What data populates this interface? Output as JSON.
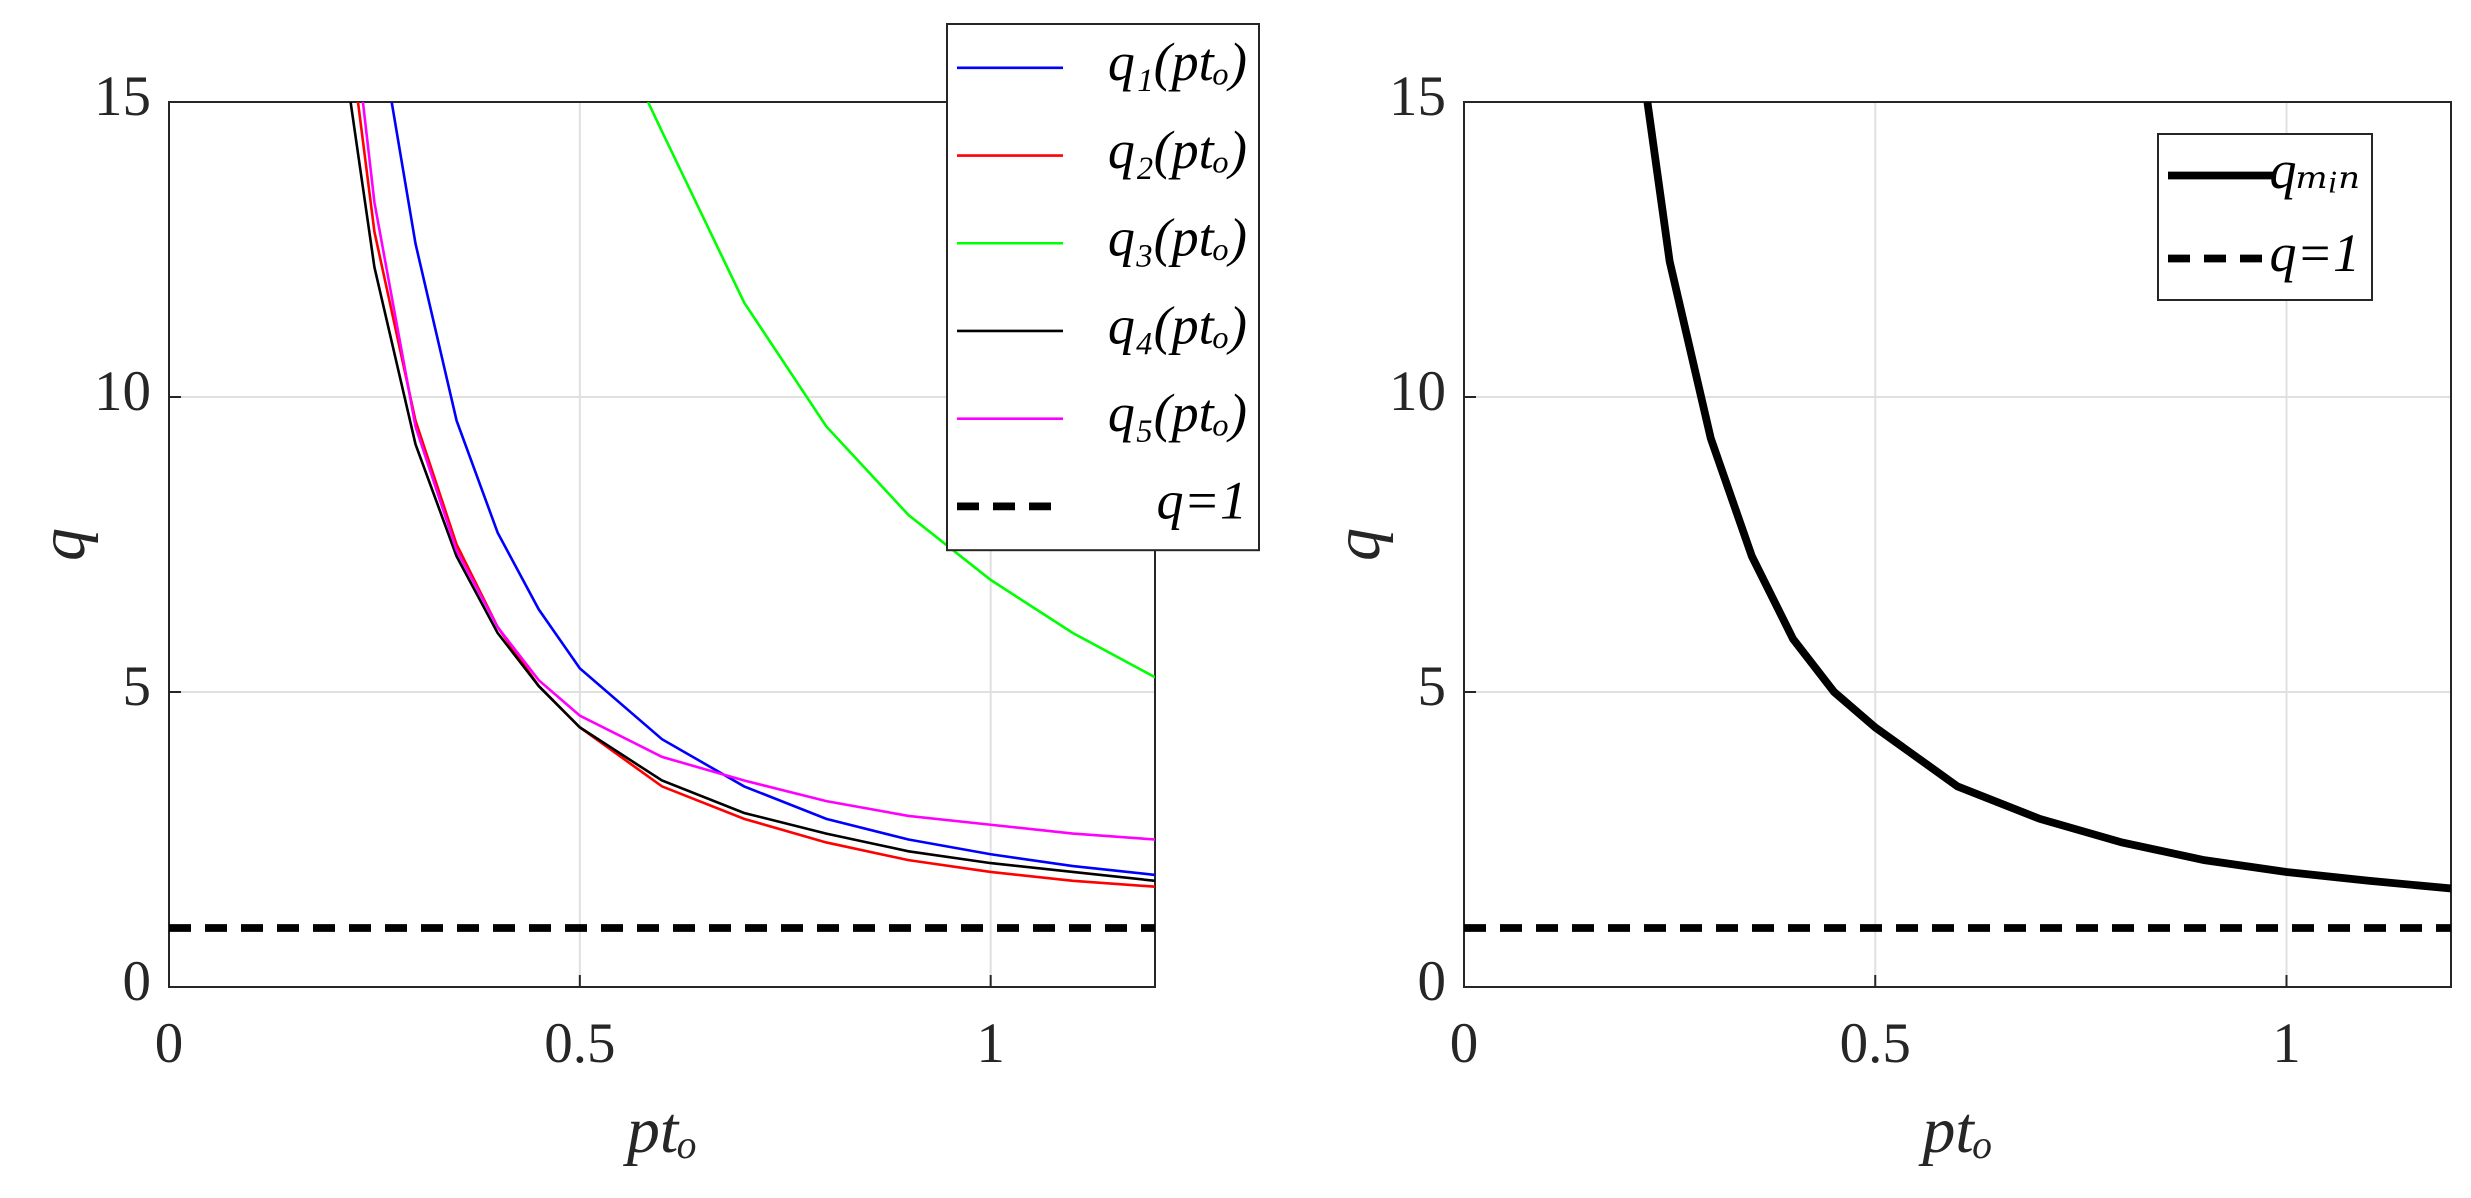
{
  "chart_data": [
    {
      "type": "line",
      "xlabel": "ptₒ",
      "ylabel": "q",
      "xlim": [
        0,
        1.2
      ],
      "ylim": [
        0,
        15
      ],
      "xticks": [
        0,
        0.5,
        1
      ],
      "yticks": [
        0,
        5,
        10,
        15
      ],
      "grid": true,
      "legend": "northeast",
      "series": [
        {
          "name": "q₁(ptₒ)",
          "color": "#0000ff",
          "x": [
            0.271,
            0.3,
            0.35,
            0.4,
            0.45,
            0.5,
            0.6,
            0.7,
            0.8,
            0.9,
            1.0,
            1.1,
            1.2
          ],
          "values": [
            15,
            12.6,
            9.6,
            7.7,
            6.4,
            5.4,
            4.2,
            3.4,
            2.85,
            2.5,
            2.25,
            2.05,
            1.9
          ]
        },
        {
          "name": "q₂(ptₒ)",
          "color": "#ff0000",
          "x": [
            0.23,
            0.25,
            0.3,
            0.35,
            0.4,
            0.45,
            0.5,
            0.6,
            0.7,
            0.8,
            0.9,
            1.0,
            1.1,
            1.2
          ],
          "values": [
            15,
            12.8,
            9.6,
            7.5,
            6.1,
            5.1,
            4.4,
            3.4,
            2.85,
            2.45,
            2.15,
            1.95,
            1.8,
            1.7
          ]
        },
        {
          "name": "q₃(ptₒ)",
          "color": "#00ff00",
          "x": [
            0.583,
            0.6,
            0.7,
            0.8,
            0.9,
            1.0,
            1.1,
            1.2
          ],
          "values": [
            15,
            14.5,
            11.6,
            9.5,
            8.0,
            6.9,
            6.0,
            5.25
          ]
        },
        {
          "name": "q₄(ptₒ)",
          "color": "#000000",
          "x": [
            0.221,
            0.25,
            0.3,
            0.35,
            0.4,
            0.45,
            0.5,
            0.6,
            0.7,
            0.8,
            0.9,
            1.0,
            1.1,
            1.2
          ],
          "values": [
            15,
            12.2,
            9.2,
            7.3,
            6.0,
            5.1,
            4.4,
            3.5,
            2.95,
            2.6,
            2.3,
            2.1,
            1.95,
            1.8
          ]
        },
        {
          "name": "q₅(ptₒ)",
          "color": "#ff00ff",
          "x": [
            0.236,
            0.25,
            0.3,
            0.35,
            0.4,
            0.45,
            0.5,
            0.6,
            0.7,
            0.8,
            0.9,
            1.0,
            1.1,
            1.2
          ],
          "values": [
            15,
            13.3,
            9.5,
            7.4,
            6.1,
            5.2,
            4.6,
            3.9,
            3.5,
            3.15,
            2.9,
            2.75,
            2.6,
            2.5
          ]
        },
        {
          "name": "q=1",
          "color": "#000000",
          "dash": true,
          "line_width": 3,
          "x": [
            0,
            1.2
          ],
          "values": [
            1,
            1
          ]
        }
      ]
    },
    {
      "type": "line",
      "xlabel": "ptₒ",
      "ylabel": "q",
      "xlim": [
        0,
        1.2
      ],
      "ylim": [
        0,
        15
      ],
      "xticks": [
        0,
        0.5,
        1
      ],
      "yticks": [
        0,
        5,
        10,
        15
      ],
      "grid": true,
      "legend": "northeast",
      "series": [
        {
          "name": "qₘᵢₙ",
          "color": "#000000",
          "line_width": 3,
          "x": [
            0.223,
            0.25,
            0.3,
            0.35,
            0.4,
            0.45,
            0.5,
            0.6,
            0.7,
            0.8,
            0.9,
            1.0,
            1.1,
            1.2
          ],
          "values": [
            15,
            12.3,
            9.3,
            7.3,
            5.9,
            5.0,
            4.4,
            3.4,
            2.85,
            2.45,
            2.15,
            1.95,
            1.8,
            1.67
          ]
        },
        {
          "name": "q=1",
          "color": "#000000",
          "dash": true,
          "line_width": 3,
          "x": [
            0,
            1.2
          ],
          "values": [
            1,
            1
          ]
        }
      ]
    }
  ]
}
